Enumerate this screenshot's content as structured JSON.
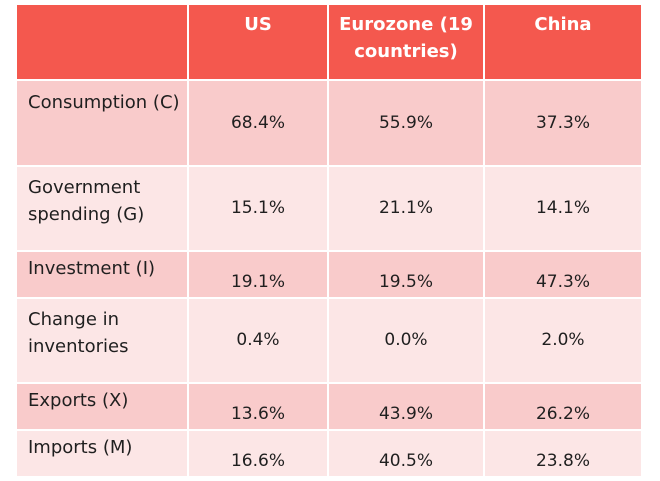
{
  "table": {
    "columns": [
      "",
      "US",
      "Eurozone (19 countries)",
      "China"
    ],
    "rows": [
      {
        "label": "Consumption (C)",
        "values": [
          "68.4%",
          "55.9%",
          "37.3%"
        ]
      },
      {
        "label": "Government spending (G)",
        "values": [
          "15.1%",
          "21.1%",
          "14.1%"
        ]
      },
      {
        "label": "Investment (I)",
        "values": [
          "19.1%",
          "19.5%",
          "47.3%"
        ]
      },
      {
        "label": "Change in inventories",
        "values": [
          "0.4%",
          "0.0%",
          "2.0%"
        ]
      },
      {
        "label": "Exports (X)",
        "values": [
          "13.6%",
          "43.9%",
          "26.2%"
        ]
      },
      {
        "label": "Imports (M)",
        "values": [
          "16.6%",
          "40.5%",
          "23.8%"
        ]
      }
    ]
  },
  "colors": {
    "header": "#f4584e",
    "row_dark": "#f9cbcb",
    "row_light": "#fce6e6"
  }
}
